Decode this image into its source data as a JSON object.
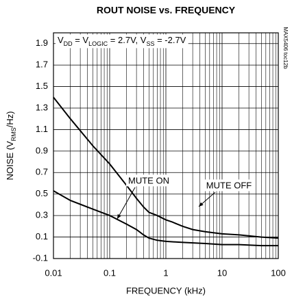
{
  "chart_data": {
    "type": "line",
    "title": "ROUT NOISE vs. FREQUENCY",
    "x_label": "FREQUENCY (kHz)",
    "y_label": [
      {
        "text": "NOISE (V"
      },
      {
        "text": "RMS",
        "sub": true
      },
      {
        "text": "/Hz)"
      }
    ],
    "condition": [
      {
        "text": "V"
      },
      {
        "text": "DD",
        "sub": true
      },
      {
        "text": " = V"
      },
      {
        "text": "LOGIC",
        "sub": true
      },
      {
        "text": " = 2.7V, V"
      },
      {
        "text": "SS",
        "sub": true
      },
      {
        "text": " = -2.7V"
      }
    ],
    "side_note": "MAX5406 toc12b",
    "xlog": true,
    "xlim": [
      0.01,
      100
    ],
    "xticks": [
      0.01,
      0.1,
      1,
      10,
      100
    ],
    "ylim": [
      -0.1,
      2.0
    ],
    "yticks": [
      -0.1,
      0.1,
      0.3,
      0.5,
      0.7,
      0.9,
      1.1,
      1.3,
      1.5,
      1.7,
      1.9
    ],
    "grid": true,
    "series": [
      {
        "name": "MUTE OFF",
        "color": "#000000",
        "x": [
          0.01,
          0.02,
          0.05,
          0.1,
          0.2,
          0.3,
          0.4,
          0.5,
          0.7,
          1,
          1.3,
          1.6,
          2,
          3,
          5,
          10,
          20,
          50,
          100
        ],
        "values": [
          1.4,
          1.2,
          0.95,
          0.78,
          0.58,
          0.46,
          0.38,
          0.33,
          0.3,
          0.26,
          0.24,
          0.22,
          0.2,
          0.17,
          0.15,
          0.13,
          0.12,
          0.1,
          0.09
        ]
      },
      {
        "name": "MUTE ON",
        "color": "#000000",
        "x": [
          0.01,
          0.02,
          0.05,
          0.1,
          0.2,
          0.3,
          0.4,
          0.5,
          0.7,
          1,
          2,
          5,
          10,
          20,
          50,
          100
        ],
        "values": [
          0.53,
          0.44,
          0.36,
          0.3,
          0.22,
          0.17,
          0.12,
          0.09,
          0.07,
          0.06,
          0.05,
          0.04,
          0.03,
          0.03,
          0.02,
          0.02
        ]
      }
    ]
  }
}
